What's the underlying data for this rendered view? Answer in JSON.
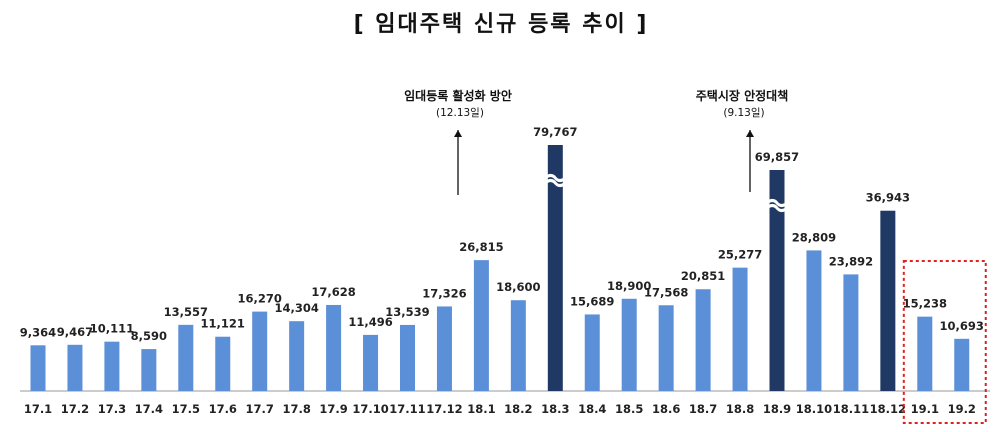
{
  "chart_data": {
    "type": "bar",
    "title": "[ 임대주택 신규 등록 추이 ]",
    "categories": [
      "17.1",
      "17.2",
      "17.3",
      "17.4",
      "17.5",
      "17.6",
      "17.7",
      "17.8",
      "17.9",
      "17.10",
      "17.11",
      "17.12",
      "18.1",
      "18.2",
      "18.3",
      "18.4",
      "18.5",
      "18.6",
      "18.7",
      "18.8",
      "18.9",
      "18.10",
      "18.11",
      "18.12",
      "19.1",
      "19.2"
    ],
    "values": [
      9364,
      9467,
      10111,
      8590,
      13557,
      11121,
      16270,
      14304,
      17628,
      11496,
      13539,
      17326,
      26815,
      18600,
      79767,
      15689,
      18900,
      17568,
      20851,
      25277,
      69857,
      28809,
      23892,
      36943,
      15238,
      10693
    ],
    "value_labels": [
      "9,364",
      "9,467",
      "10,111",
      "8,590",
      "13,557",
      "11,121",
      "16,270",
      "14,304",
      "17,628",
      "11,496",
      "13,539",
      "17,326",
      "26,815",
      "18,600",
      "79,767",
      "15,689",
      "18,900",
      "17,568",
      "20,851",
      "25,277",
      "69,857",
      "28,809",
      "23,892",
      "36,943",
      "15,238",
      "10,693"
    ],
    "highlight_categories": [
      "18.3",
      "18.9",
      "18.12"
    ],
    "broken_axis_categories": [
      "18.3",
      "18.9"
    ],
    "boxed_categories": [
      "19.1",
      "19.2"
    ],
    "colors": {
      "bar": "#5B8FD8",
      "highlight": "#1F3864",
      "box": "#E02020",
      "axis": "#999999"
    },
    "annotations": [
      {
        "category": "18.1",
        "text": "임대등록 활성화 방안",
        "subtext": "(12.13일)"
      },
      {
        "category": "18.9",
        "text": "주택시장 안정대책",
        "subtext": "(9.13일)"
      }
    ],
    "xlabel": "",
    "ylabel": "",
    "grid": false
  }
}
